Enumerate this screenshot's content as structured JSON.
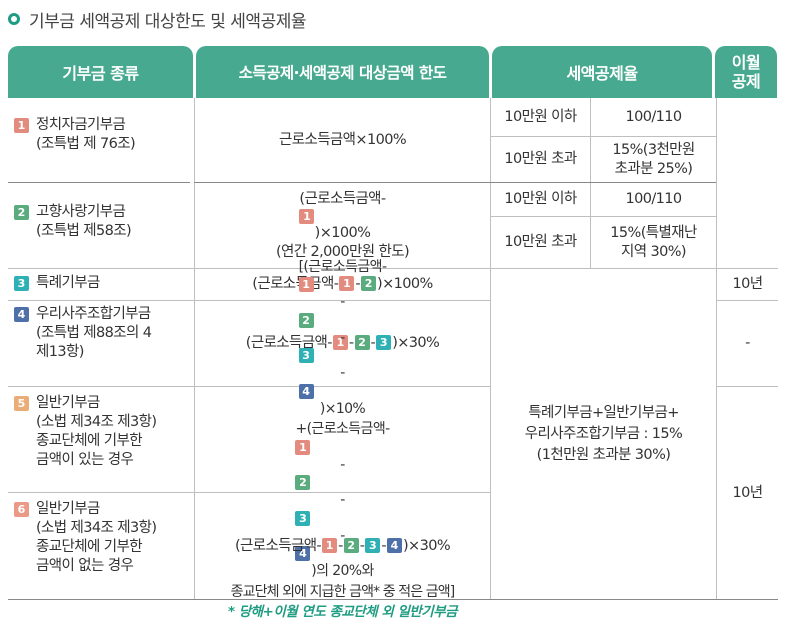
{
  "title": "기부금 세액공제 대상한도 및 세액공제율",
  "headers": {
    "type": "기부금 종류",
    "limit": "소득공제·세액공제 대상금액 한도",
    "rate": "세액공제율",
    "carry_line1": "이월",
    "carry_line2": "공제"
  },
  "rows": {
    "r1": {
      "badge": "1",
      "name_line1": "정치자금기부금",
      "name_line2": "(조특법 제 76조)",
      "limit": "근로소득금액×100%",
      "rate_a_cond": "10만원 이하",
      "rate_a_val": "100/110",
      "rate_b_cond": "10만원 초과",
      "rate_b_val_line1": "15%(3천만원",
      "rate_b_val_line2": "초과분 25%)"
    },
    "r2": {
      "badge": "2",
      "name_line1": "고향사랑기부금",
      "name_line2": "(조특법 제58조)",
      "limit_pre": "(근로소득금액-",
      "limit_badge": "1",
      "limit_post": ")×100%",
      "limit_line2": "(연간 2,000만원 한도)",
      "rate_a_cond": "10만원 이하",
      "rate_a_val": "100/110",
      "rate_b_cond": "10만원 초과",
      "rate_b_val_line1": "15%(특별재난",
      "rate_b_val_line2": "지역 30%)"
    },
    "r3": {
      "badge": "3",
      "name_line1": "특례기부금",
      "limit_pre": "(근로소득금액-",
      "limit_post": ")×100%",
      "carry": "10년"
    },
    "r4": {
      "badge": "4",
      "name_line1": "우리사주조합기부금",
      "name_line2": "(조특법 제88조의 4",
      "name_line3": "제13항)",
      "limit_pre": "(근로소득금액-",
      "limit_post": ")×30%",
      "carry": "-"
    },
    "r5": {
      "badge": "5",
      "name_line1": "일반기부금",
      "name_line2": "(소법 제34조 제3항)",
      "name_line3": "종교단체에 기부한",
      "name_line4": "금액이 있는 경우",
      "limit_l1_pre": "[(근로소득금액-",
      "limit_l1_post": ")×10%",
      "limit_l2_pre": "+(근로소득금액-",
      "limit_l2_post": ")의 20%와",
      "limit_l3": "종교단체 외에 지급한 금액* 중 적은 금액]",
      "limit_note": "* 당해+이월 연도 종교단체 외 일반기부금"
    },
    "r6": {
      "badge": "6",
      "name_line1": "일반기부금",
      "name_line2": "(소법 제34조 제3항)",
      "name_line3": "종교단체에 기부한",
      "name_line4": "금액이 없는 경우",
      "limit_pre": "(근로소득금액-",
      "limit_post": ")×30%"
    }
  },
  "merged_rate": {
    "line1": "특례기부금+일반기부금+",
    "line2": "우리사주조합기부금 : 15%",
    "line3": "(1천만원 초과분 30%)"
  },
  "merged_carry_56": "10년",
  "badge_labels": {
    "b1": "1",
    "b2": "2",
    "b3": "3",
    "b4": "4"
  },
  "colors": {
    "header_bg": "#47a98f",
    "accent": "#1f9c82",
    "badge1": "#e48b80",
    "badge2": "#5aab7e",
    "badge3": "#2fb0b5",
    "badge4": "#4e70a8",
    "badge5": "#ecac78",
    "badge6": "#eb9a88"
  }
}
